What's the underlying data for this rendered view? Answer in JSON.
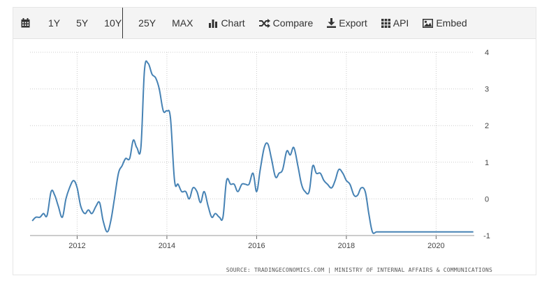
{
  "toolbar": {
    "calendar_icon": "calendar-icon",
    "ranges": [
      "1Y",
      "5Y",
      "10Y",
      "25Y",
      "MAX"
    ],
    "active_range": "10Y",
    "chart_label": "Chart",
    "compare_label": "Compare",
    "export_label": "Export",
    "api_label": "API",
    "embed_label": "Embed",
    "icons": [
      "bar-chart-icon",
      "shuffle-icon",
      "download-icon",
      "grid-icon",
      "image-icon"
    ]
  },
  "source_text": "SOURCE: TRADINGECONOMICS.COM | MINISTRY OF INTERNAL AFFAIRS & COMMUNICATIONS",
  "colors": {
    "line": "#4682b4",
    "grid": "#cccccc",
    "toolbar_bg": "#f4f4f4"
  },
  "chart_data": {
    "type": "line",
    "title": "",
    "xlabel": "",
    "ylabel": "",
    "xlim": [
      2010.95,
      2020.85
    ],
    "ylim": [
      -1,
      4
    ],
    "x_ticks": [
      2012,
      2014,
      2016,
      2018,
      2020
    ],
    "x_tick_labels": [
      "2012",
      "2014",
      "2016",
      "2018",
      "2020"
    ],
    "y_ticks": [
      4,
      3,
      2,
      1,
      0,
      -1
    ],
    "y_tick_labels": [
      "4",
      "3",
      "2",
      "1",
      "0",
      "-1"
    ],
    "grid": true,
    "legend": "none",
    "series": [
      {
        "x": [
          2011.0,
          2011.08,
          2011.17,
          2011.25,
          2011.33,
          2011.42,
          2011.5,
          2011.58,
          2011.67,
          2011.75,
          2011.83,
          2011.92,
          2012.0,
          2012.08,
          2012.17,
          2012.25,
          2012.33,
          2012.42,
          2012.5,
          2012.58,
          2012.67,
          2012.75,
          2012.83,
          2012.92,
          2013.0,
          2013.08,
          2013.17,
          2013.25,
          2013.33,
          2013.42,
          2013.5,
          2013.58,
          2013.67,
          2013.75,
          2013.83,
          2013.92,
          2014.0,
          2014.08,
          2014.17,
          2014.25,
          2014.33,
          2014.42,
          2014.5,
          2014.58,
          2014.67,
          2014.75,
          2014.83,
          2014.92,
          2015.0,
          2015.08,
          2015.17,
          2015.25,
          2015.33,
          2015.42,
          2015.5,
          2015.58,
          2015.67,
          2015.75,
          2015.83,
          2015.92,
          2016.0,
          2016.08,
          2016.17,
          2016.25,
          2016.33,
          2016.42,
          2016.5,
          2016.58,
          2016.67,
          2016.75,
          2016.83,
          2016.92,
          2017.0,
          2017.08,
          2017.17,
          2017.25,
          2017.33,
          2017.42,
          2017.5,
          2017.58,
          2017.67,
          2017.75,
          2017.83,
          2017.92,
          2018.0,
          2018.08,
          2018.17,
          2018.25,
          2018.33,
          2018.42,
          2018.5,
          2018.58,
          2018.67,
          2018.75,
          2018.83,
          2018.92,
          2019.0,
          2019.08,
          2019.17,
          2019.25,
          2019.33,
          2019.42,
          2019.5,
          2019.58,
          2019.67,
          2019.75,
          2019.83,
          2019.92,
          2020.0,
          2020.08,
          2020.17,
          2020.25,
          2020.33,
          2020.42,
          2020.5,
          2020.58,
          2020.67,
          2020.75,
          2020.83
        ],
        "values": [
          -0.6,
          -0.5,
          -0.5,
          -0.4,
          -0.45,
          0.2,
          0.1,
          -0.2,
          -0.5,
          0.0,
          0.3,
          0.5,
          0.3,
          -0.2,
          -0.4,
          -0.3,
          -0.4,
          -0.2,
          -0.1,
          -0.6,
          -0.9,
          -0.6,
          0.0,
          0.7,
          0.9,
          1.1,
          1.1,
          1.6,
          1.4,
          1.4,
          3.5,
          3.7,
          3.4,
          3.3,
          3.0,
          2.4,
          2.4,
          2.2,
          0.5,
          0.4,
          0.2,
          0.2,
          0.0,
          0.3,
          0.2,
          -0.1,
          0.2,
          -0.2,
          -0.5,
          -0.4,
          -0.5,
          -0.5,
          0.5,
          0.4,
          0.4,
          0.2,
          0.4,
          0.4,
          0.4,
          0.7,
          0.2,
          0.8,
          1.4,
          1.5,
          1.1,
          0.6,
          0.7,
          0.8,
          1.3,
          1.2,
          1.4,
          0.9,
          0.4,
          0.2,
          0.2,
          0.9,
          0.7,
          0.7,
          0.5,
          0.4,
          0.3,
          0.5,
          0.8,
          0.7,
          0.5,
          0.4,
          0.1,
          0.1,
          0.3,
          0.2,
          -0.4,
          -0.9,
          -0.9,
          -0.9,
          -0.9,
          -0.9,
          -0.9,
          -0.9,
          -0.9,
          -0.9,
          -0.9,
          -0.9,
          -0.9,
          -0.9,
          -0.9,
          -0.9,
          -0.9,
          -0.9,
          -0.9,
          -0.9,
          -0.9,
          -0.9,
          -0.9,
          -0.9,
          -0.9,
          -0.9,
          -0.9,
          -0.9,
          -0.9
        ]
      }
    ]
  }
}
